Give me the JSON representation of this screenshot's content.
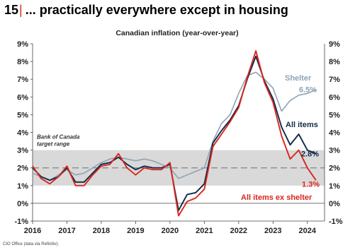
{
  "page": {
    "number": "15",
    "title": "... practically everywhere except in housing",
    "source": "CIO Office (data via Refinitiv)."
  },
  "chart_data": {
    "type": "line",
    "title": "Canadian inflation (year-over-year)",
    "xlabel": "",
    "ylabel": "",
    "xlim": [
      2016.0,
      2024.5
    ],
    "ylim": [
      -1,
      9
    ],
    "x_ticks": [
      "2016",
      "2017",
      "2018",
      "2019",
      "2020",
      "2021",
      "2022",
      "2023",
      "2024"
    ],
    "y_ticks": [
      "-1%",
      "0%",
      "1%",
      "2%",
      "3%",
      "4%",
      "5%",
      "6%",
      "7%",
      "8%",
      "9%"
    ],
    "target_band": {
      "label_line1": "Bank of Canada",
      "label_line2": "target range",
      "low": 1,
      "high": 3,
      "mid": 2
    },
    "series": [
      {
        "name": "Shelter",
        "color": "#8fa3b5",
        "end_label": "6.5%",
        "points": [
          [
            2016.0,
            1.7
          ],
          [
            2016.25,
            1.5
          ],
          [
            2016.5,
            1.3
          ],
          [
            2016.75,
            1.6
          ],
          [
            2017.0,
            1.9
          ],
          [
            2017.25,
            1.6
          ],
          [
            2017.5,
            1.7
          ],
          [
            2017.75,
            2.0
          ],
          [
            2018.0,
            2.3
          ],
          [
            2018.25,
            2.5
          ],
          [
            2018.5,
            2.6
          ],
          [
            2018.75,
            2.5
          ],
          [
            2019.0,
            2.4
          ],
          [
            2019.25,
            2.5
          ],
          [
            2019.5,
            2.4
          ],
          [
            2019.75,
            2.2
          ],
          [
            2020.0,
            2.0
          ],
          [
            2020.25,
            1.4
          ],
          [
            2020.5,
            1.6
          ],
          [
            2020.75,
            1.8
          ],
          [
            2021.0,
            2.0
          ],
          [
            2021.25,
            3.5
          ],
          [
            2021.5,
            4.5
          ],
          [
            2021.75,
            5.0
          ],
          [
            2022.0,
            6.2
          ],
          [
            2022.25,
            7.2
          ],
          [
            2022.5,
            7.4
          ],
          [
            2022.75,
            7.0
          ],
          [
            2023.0,
            6.5
          ],
          [
            2023.25,
            5.2
          ],
          [
            2023.5,
            5.8
          ],
          [
            2023.75,
            6.1
          ],
          [
            2024.0,
            6.2
          ],
          [
            2024.25,
            6.4
          ]
        ]
      },
      {
        "name": "All items",
        "color": "#0e2a47",
        "end_label": "2.8%",
        "points": [
          [
            2016.0,
            2.0
          ],
          [
            2016.25,
            1.5
          ],
          [
            2016.5,
            1.3
          ],
          [
            2016.75,
            1.5
          ],
          [
            2017.0,
            2.0
          ],
          [
            2017.25,
            1.2
          ],
          [
            2017.5,
            1.2
          ],
          [
            2017.75,
            1.7
          ],
          [
            2018.0,
            2.2
          ],
          [
            2018.25,
            2.3
          ],
          [
            2018.5,
            2.6
          ],
          [
            2018.75,
            2.2
          ],
          [
            2019.0,
            1.9
          ],
          [
            2019.25,
            2.1
          ],
          [
            2019.5,
            2.0
          ],
          [
            2019.75,
            2.0
          ],
          [
            2020.0,
            2.2
          ],
          [
            2020.25,
            -0.4
          ],
          [
            2020.5,
            0.5
          ],
          [
            2020.75,
            0.6
          ],
          [
            2021.0,
            1.1
          ],
          [
            2021.25,
            3.4
          ],
          [
            2021.5,
            4.1
          ],
          [
            2021.75,
            4.7
          ],
          [
            2022.0,
            5.5
          ],
          [
            2022.25,
            7.0
          ],
          [
            2022.5,
            8.3
          ],
          [
            2022.75,
            6.9
          ],
          [
            2023.0,
            5.9
          ],
          [
            2023.25,
            4.3
          ],
          [
            2023.5,
            3.3
          ],
          [
            2023.75,
            3.9
          ],
          [
            2024.0,
            3.0
          ],
          [
            2024.25,
            2.8
          ]
        ]
      },
      {
        "name": "All items ex shelter",
        "color": "#d9261c",
        "end_label": "1.3%",
        "points": [
          [
            2016.0,
            2.1
          ],
          [
            2016.25,
            1.4
          ],
          [
            2016.5,
            1.1
          ],
          [
            2016.75,
            1.5
          ],
          [
            2017.0,
            2.1
          ],
          [
            2017.25,
            1.0
          ],
          [
            2017.5,
            1.0
          ],
          [
            2017.75,
            1.6
          ],
          [
            2018.0,
            2.1
          ],
          [
            2018.25,
            2.2
          ],
          [
            2018.5,
            2.8
          ],
          [
            2018.75,
            2.0
          ],
          [
            2019.0,
            1.6
          ],
          [
            2019.25,
            2.0
          ],
          [
            2019.5,
            1.9
          ],
          [
            2019.75,
            1.9
          ],
          [
            2020.0,
            2.3
          ],
          [
            2020.25,
            -0.7
          ],
          [
            2020.5,
            0.1
          ],
          [
            2020.75,
            0.3
          ],
          [
            2021.0,
            0.8
          ],
          [
            2021.25,
            3.2
          ],
          [
            2021.5,
            3.9
          ],
          [
            2021.75,
            4.6
          ],
          [
            2022.0,
            5.4
          ],
          [
            2022.25,
            7.1
          ],
          [
            2022.5,
            8.6
          ],
          [
            2022.75,
            6.8
          ],
          [
            2023.0,
            5.7
          ],
          [
            2023.25,
            3.8
          ],
          [
            2023.5,
            2.5
          ],
          [
            2023.75,
            3.0
          ],
          [
            2024.0,
            2.0
          ],
          [
            2024.25,
            1.3
          ]
        ]
      }
    ]
  }
}
